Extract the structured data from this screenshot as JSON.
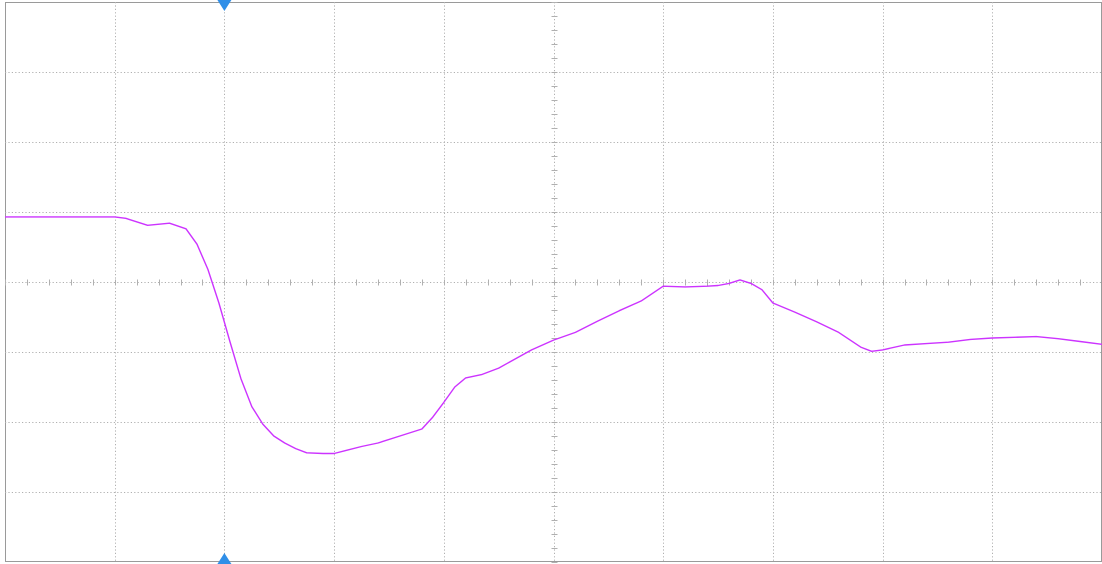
{
  "chart_data": {
    "type": "line",
    "title": "",
    "xlabel": "",
    "ylabel": "",
    "grid": true,
    "grid_style": "dotted",
    "grid_divisions": {
      "x": 10,
      "y": 8
    },
    "minor_ticks_per_division": 5,
    "xlim": [
      0,
      10
    ],
    "ylim": [
      -4,
      4
    ],
    "trigger_marker_x": 2,
    "series": [
      {
        "name": "",
        "color": "#cc33ff",
        "x": [
          0,
          1.0,
          1.1,
          1.3,
          1.5,
          1.65,
          1.75,
          1.85,
          1.95,
          2.05,
          2.15,
          2.25,
          2.35,
          2.45,
          2.55,
          2.65,
          2.75,
          2.9,
          3.0,
          3.1,
          3.25,
          3.4,
          3.6,
          3.8,
          3.9,
          4.0,
          4.1,
          4.2,
          4.35,
          4.5,
          4.65,
          4.8,
          5.0,
          5.2,
          5.4,
          5.6,
          5.8,
          6.0,
          6.2,
          6.4,
          6.5,
          6.6,
          6.7,
          6.8,
          6.9,
          7.0,
          7.2,
          7.4,
          7.6,
          7.8,
          7.9,
          8.0,
          8.2,
          8.4,
          8.6,
          8.8,
          9.0,
          9.2,
          9.4,
          9.6,
          9.8,
          10.0
        ],
        "y": [
          0.93,
          0.93,
          0.91,
          0.81,
          0.84,
          0.76,
          0.54,
          0.18,
          -0.3,
          -0.85,
          -1.38,
          -1.78,
          -2.03,
          -2.2,
          -2.3,
          -2.38,
          -2.44,
          -2.45,
          -2.45,
          -2.41,
          -2.35,
          -2.3,
          -2.2,
          -2.1,
          -1.93,
          -1.72,
          -1.5,
          -1.37,
          -1.32,
          -1.23,
          -1.1,
          -0.97,
          -0.83,
          -0.72,
          -0.56,
          -0.41,
          -0.27,
          -0.06,
          -0.07,
          -0.06,
          -0.05,
          -0.02,
          0.03,
          -0.02,
          -0.11,
          -0.3,
          -0.43,
          -0.57,
          -0.72,
          -0.93,
          -0.99,
          -0.97,
          -0.9,
          -0.88,
          -0.86,
          -0.82,
          -0.8,
          -0.79,
          -0.78,
          -0.81,
          -0.85,
          -0.89
        ]
      }
    ]
  },
  "colors": {
    "background": "#ffffff",
    "grid": "#b0b0b0",
    "trace": "#cc33ff",
    "trigger_marker": "#2f8fe8",
    "frame": "#9a9a9a"
  }
}
